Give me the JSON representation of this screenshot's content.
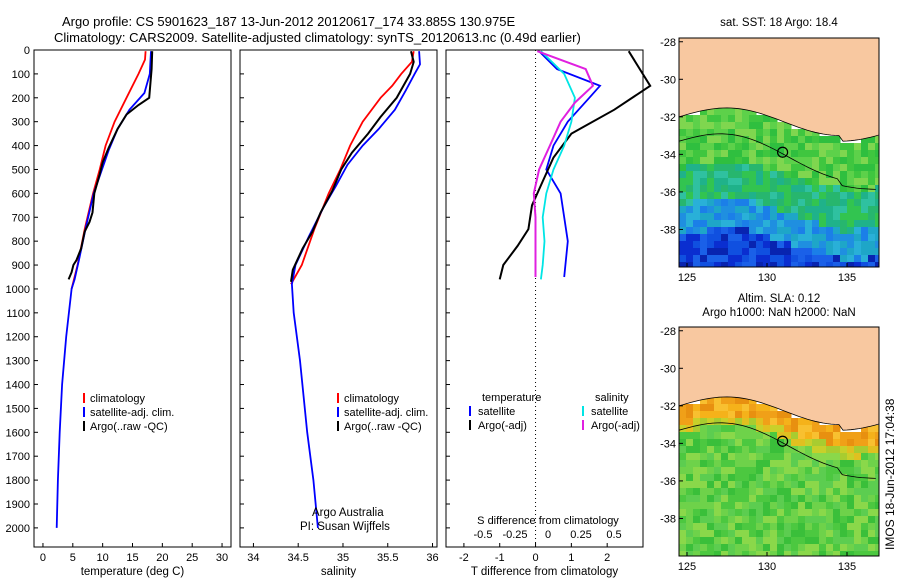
{
  "header": {
    "title_line1": "Argo profile: CS 5901623_187 13-Jun-2012 20120617_174 33.885S 130.975E",
    "title_line2": "Climatology: CARS2009. Satellite-adjusted climatology: synTS_20120613.nc (0.49d earlier)"
  },
  "credit": {
    "line1": "Argo Australia",
    "line2": "PI: Susan Wijffels"
  },
  "side_stamp": "IMOS 18-Jun-2012 17:04:38",
  "colors": {
    "climatology": "#ff0000",
    "satellite": "#0000ff",
    "argo": "#000000",
    "salinity_satellite": "#00e5e5",
    "salinity_argo": "#e020e0",
    "land": "#f8c8a0",
    "circle": "#000000"
  },
  "chart_data": [
    {
      "type": "line",
      "id": "temperature_profile",
      "xlabel": "temperature (deg C)",
      "xlim": [
        -1.5,
        31.5
      ],
      "xticks": [
        0,
        5,
        10,
        15,
        20,
        25,
        30
      ],
      "ylim": [
        0,
        2080
      ],
      "yticks": [
        0,
        100,
        200,
        300,
        400,
        500,
        600,
        700,
        800,
        900,
        1000,
        1100,
        1200,
        1300,
        1400,
        1500,
        1600,
        1700,
        1800,
        1900,
        2000
      ],
      "y_reversed": true,
      "legend": [
        "climatology",
        "satellite-adj. clim.",
        "Argo(..raw -QC)"
      ],
      "series": [
        {
          "name": "climatology",
          "color": "#ff0000",
          "points": [
            [
              17.2,
              5
            ],
            [
              17.1,
              40
            ],
            [
              16.0,
              100
            ],
            [
              14.0,
              200
            ],
            [
              12.0,
              300
            ],
            [
              10.5,
              400
            ],
            [
              9.5,
              500
            ],
            [
              8.4,
              600
            ],
            [
              7.0,
              750
            ],
            [
              5.8,
              900
            ],
            [
              4.8,
              1000
            ]
          ]
        },
        {
          "name": "satellite-adj. clim.",
          "color": "#0000ff",
          "points": [
            [
              18.1,
              5
            ],
            [
              18.0,
              50
            ],
            [
              17.9,
              100
            ],
            [
              17.0,
              180
            ],
            [
              14.5,
              250
            ],
            [
              12.5,
              330
            ],
            [
              11.0,
              420
            ],
            [
              9.6,
              520
            ],
            [
              8.5,
              600
            ],
            [
              7.3,
              730
            ],
            [
              6.1,
              870
            ],
            [
              5.3,
              960
            ],
            [
              4.8,
              1000
            ],
            [
              3.9,
              1200
            ],
            [
              3.2,
              1400
            ],
            [
              2.8,
              1600
            ],
            [
              2.5,
              1800
            ],
            [
              2.3,
              2000
            ]
          ]
        },
        {
          "name": "Argo(..raw -QC)",
          "color": "#000000",
          "points": [
            [
              18.3,
              5
            ],
            [
              18.2,
              80
            ],
            [
              17.8,
              200
            ],
            [
              16.0,
              230
            ],
            [
              14.0,
              270
            ],
            [
              12.5,
              330
            ],
            [
              11.0,
              410
            ],
            [
              10.0,
              470
            ],
            [
              9.5,
              520
            ],
            [
              8.6,
              600
            ],
            [
              8.3,
              680
            ],
            [
              7.8,
              720
            ],
            [
              7.0,
              760
            ],
            [
              6.4,
              830
            ],
            [
              5.6,
              880
            ],
            [
              5.1,
              900
            ],
            [
              4.8,
              930
            ],
            [
              4.3,
              960
            ]
          ]
        }
      ]
    },
    {
      "type": "line",
      "id": "salinity_profile",
      "xlabel": "salinity",
      "xlim": [
        33.85,
        36.05
      ],
      "xticks": [
        34,
        34.5,
        35,
        35.5,
        36
      ],
      "xtick_labels": [
        "34",
        "34.5",
        "35",
        "35.5",
        "36"
      ],
      "ylim": [
        0,
        2080
      ],
      "y_reversed": true,
      "legend": [
        "climatology",
        "satellite-adj. clim.",
        "Argo(..raw -QC)"
      ],
      "series": [
        {
          "name": "climatology",
          "color": "#ff0000",
          "points": [
            [
              35.79,
              5
            ],
            [
              35.77,
              50
            ],
            [
              35.65,
              100
            ],
            [
              35.55,
              150
            ],
            [
              35.42,
              200
            ],
            [
              35.22,
              300
            ],
            [
              35.08,
              400
            ],
            [
              34.97,
              500
            ],
            [
              34.84,
              600
            ],
            [
              34.68,
              750
            ],
            [
              34.54,
              900
            ],
            [
              34.42,
              980
            ]
          ]
        },
        {
          "name": "satellite-adj. clim.",
          "color": "#0000ff",
          "points": [
            [
              35.85,
              5
            ],
            [
              35.86,
              60
            ],
            [
              35.8,
              100
            ],
            [
              35.7,
              170
            ],
            [
              35.58,
              250
            ],
            [
              35.4,
              330
            ],
            [
              35.22,
              400
            ],
            [
              35.05,
              480
            ],
            [
              34.92,
              570
            ],
            [
              34.78,
              660
            ],
            [
              34.62,
              780
            ],
            [
              34.47,
              900
            ],
            [
              34.43,
              980
            ],
            [
              34.45,
              1100
            ],
            [
              34.52,
              1300
            ],
            [
              34.6,
              1600
            ],
            [
              34.67,
              1800
            ],
            [
              34.72,
              2000
            ]
          ]
        },
        {
          "name": "Argo(..raw -QC)",
          "color": "#000000",
          "points": [
            [
              35.76,
              5
            ],
            [
              35.79,
              50
            ],
            [
              35.75,
              100
            ],
            [
              35.6,
              200
            ],
            [
              35.42,
              280
            ],
            [
              35.28,
              350
            ],
            [
              35.1,
              430
            ],
            [
              34.98,
              500
            ],
            [
              34.88,
              590
            ],
            [
              34.75,
              680
            ],
            [
              34.66,
              760
            ],
            [
              34.55,
              830
            ],
            [
              34.44,
              920
            ],
            [
              34.42,
              970
            ]
          ]
        }
      ]
    },
    {
      "type": "line",
      "id": "difference_profile",
      "xlabel": "T difference from climatology",
      "upper_axis_label": "S difference from climatology",
      "xlim": [
        -2.5,
        3
      ],
      "xticks": [
        -2,
        -1,
        0,
        1,
        2
      ],
      "upper_ticks": [
        "-0.5",
        "-0.25",
        "0",
        "0.25",
        "0.5"
      ],
      "ylim": [
        0,
        2080
      ],
      "y_reversed": true,
      "legend_groups": [
        {
          "heading": "temperature",
          "entries": [
            "satellite",
            "Argo(-adj)"
          ]
        },
        {
          "heading": "salinity",
          "entries": [
            "satellite",
            "Argo(-adj)"
          ]
        }
      ],
      "series": [
        {
          "name": "temperature satellite",
          "color": "#0000ff",
          "points": [
            [
              0.1,
              5
            ],
            [
              0.6,
              80
            ],
            [
              1.8,
              150
            ],
            [
              1.5,
              200
            ],
            [
              0.9,
              300
            ],
            [
              0.5,
              400
            ],
            [
              0.3,
              500
            ],
            [
              0.7,
              600
            ],
            [
              0.8,
              700
            ],
            [
              0.9,
              800
            ],
            [
              0.8,
              950
            ]
          ]
        },
        {
          "name": "temperature Argo(-adj)",
          "color": "#000000",
          "points": [
            [
              2.6,
              5
            ],
            [
              3.2,
              150
            ],
            [
              2.2,
              250
            ],
            [
              1.0,
              350
            ],
            [
              0.5,
              450
            ],
            [
              0.2,
              550
            ],
            [
              -0.1,
              650
            ],
            [
              -0.2,
              750
            ],
            [
              -0.5,
              820
            ],
            [
              -0.9,
              900
            ],
            [
              -1.0,
              960
            ]
          ]
        },
        {
          "name": "salinity satellite",
          "color": "#00e5e5",
          "points": [
            [
              0.15,
              5
            ],
            [
              0.8,
              100
            ],
            [
              1.1,
              200
            ],
            [
              1.0,
              300
            ],
            [
              0.8,
              400
            ],
            [
              0.5,
              500
            ],
            [
              0.3,
              600
            ],
            [
              0.2,
              700
            ],
            [
              0.25,
              800
            ],
            [
              0.2,
              900
            ],
            [
              0.15,
              960
            ]
          ]
        },
        {
          "name": "salinity Argo(-adj)",
          "color": "#e020e0",
          "points": [
            [
              0.05,
              5
            ],
            [
              1.4,
              80
            ],
            [
              1.6,
              150
            ],
            [
              1.1,
              220
            ],
            [
              0.7,
              300
            ],
            [
              0.4,
              400
            ],
            [
              0.1,
              500
            ],
            [
              -0.05,
              600
            ],
            [
              0.0,
              700
            ],
            [
              0.0,
              800
            ],
            [
              0.0,
              950
            ]
          ]
        }
      ]
    },
    {
      "type": "heatmap",
      "id": "sst_map",
      "title": "sat. SST: 18 Argo: 18.4",
      "xlim": [
        124.5,
        137
      ],
      "ylim": [
        -40,
        -27.8
      ],
      "xticks": [
        125,
        130,
        135
      ],
      "yticks": [
        -28,
        -30,
        -32,
        -34,
        -36,
        -38
      ],
      "argo_position": [
        130.975,
        -33.885
      ]
    },
    {
      "type": "heatmap",
      "id": "sla_map",
      "title_line1": "Altim. SLA: 0.12",
      "title_line2": "Argo h1000: NaN h2000: NaN",
      "xlim": [
        124.5,
        137
      ],
      "ylim": [
        -40,
        -27.8
      ],
      "xticks": [
        125,
        130,
        135
      ],
      "yticks": [
        -28,
        -30,
        -32,
        -34,
        -36,
        -38
      ],
      "argo_position": [
        130.975,
        -33.885
      ]
    }
  ]
}
